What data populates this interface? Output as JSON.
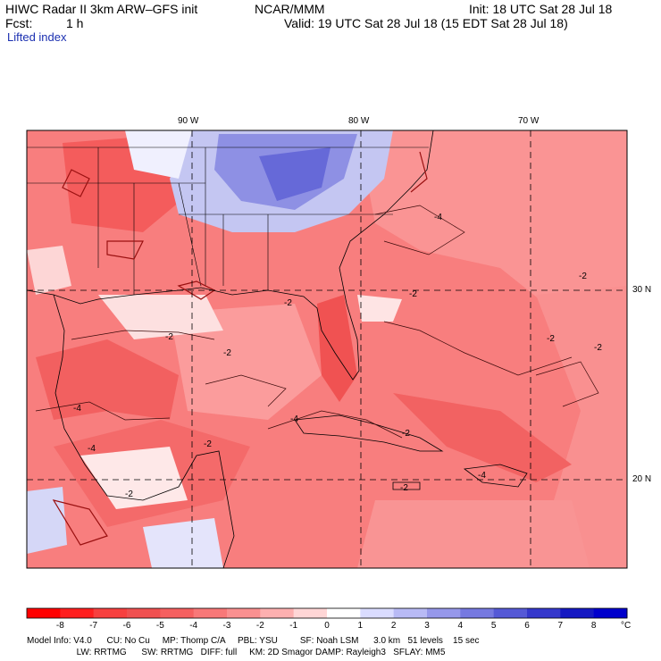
{
  "header": {
    "title": "HIWC Radar II 3km ARW–GFS init",
    "org": "NCAR/MMM",
    "init": "Init: 18 UTC Sat 28 Jul 18",
    "fcst_label": "Fcst:",
    "fcst_value": "1 h",
    "valid": "Valid: 19 UTC Sat 28 Jul 18 (15 EDT Sat 28 Jul 18)",
    "field": "Lifted index"
  },
  "map": {
    "lon_labels": [
      "90 W",
      "80 W",
      "70 W"
    ],
    "lat_labels": [
      "30 N",
      "20 N"
    ],
    "contour_labels": [
      "-2",
      "-2",
      "-2",
      "-2",
      "-2",
      "-2",
      "-2",
      "-4",
      "-4",
      "-4",
      "-4",
      "-4",
      "-2",
      "-2",
      "-2",
      "-2"
    ]
  },
  "colorbar": {
    "ticks": [
      "-8",
      "-7",
      "-6",
      "-5",
      "-4",
      "-3",
      "-2",
      "-1",
      "0",
      "1",
      "2",
      "3",
      "4",
      "5",
      "6",
      "7",
      "8"
    ],
    "unit": "°C",
    "colors": [
      "#ff0000",
      "#ff1f1f",
      "#f7403f",
      "#f05050",
      "#f56060",
      "#f87878",
      "#fa9090",
      "#fdb0b0",
      "#ffd6d6",
      "#ffffff",
      "#dadcff",
      "#b8baf5",
      "#9698ea",
      "#7679e0",
      "#5559d6",
      "#3538cc",
      "#1519c2",
      "#0000cc"
    ]
  },
  "footer": {
    "line1": "Model Info: V4.0      CU: No Cu     MP: Thomp C/A     PBL: YSU         SF: Noah LSM      3.0 km   51 levels    15 sec",
    "line2": "                    LW: RRTMG      SW: RRTMG   DIFF: full     KM: 2D Smagor DAMP: Rayleigh3   SFLAY: MM5"
  }
}
